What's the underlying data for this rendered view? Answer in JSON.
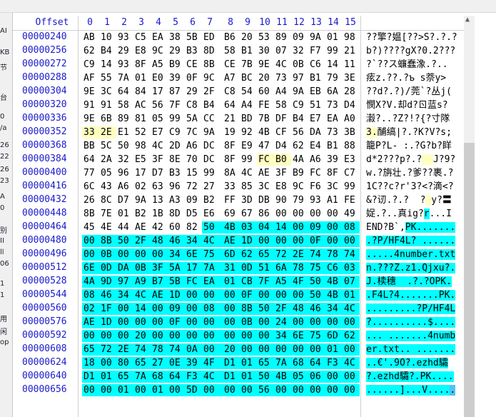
{
  "header": {
    "offset_label": "Offset",
    "columns": [
      "0",
      "1",
      "2",
      "3",
      "4",
      "5",
      "6",
      "7",
      "8",
      "9",
      "10",
      "11",
      "12",
      "13",
      "14",
      "15"
    ]
  },
  "sidebar_fragments": [
    "AI",
    "KB",
    "节",
    "台",
    "0",
    "/a",
    "26",
    "22",
    "26",
    "23",
    "A",
    "0",
    "别",
    "II",
    "ll",
    "06",
    "1",
    "1",
    "用",
    "闲",
    "op"
  ],
  "colors": {
    "offset": "#1a1acc",
    "selection": "#00ffff",
    "mark": "#ffffc0",
    "caret": "#4fc3f7"
  },
  "selection": {
    "start": 471,
    "end": 671
  },
  "marked_bytes": [
    352,
    353,
    394,
    395
  ],
  "rows": [
    {
      "offset": "00000240",
      "hex": [
        "AB",
        "10",
        "93",
        "C5",
        "EA",
        "38",
        "5B",
        "ED",
        "B6",
        "20",
        "53",
        "89",
        "09",
        "9A",
        "01",
        "98"
      ],
      "text": [
        [
          "??擎?媪[??>S?.?.?",
          ""
        ]
      ]
    },
    {
      "offset": "00000256",
      "hex": [
        "62",
        "B4",
        "29",
        "E8",
        "9C",
        "29",
        "B3",
        "8D",
        "58",
        "B1",
        "30",
        "07",
        "32",
        "F7",
        "99",
        "21"
      ],
      "text": [
        [
          "b?)????gX?0.2???",
          ""
        ]
      ]
    },
    {
      "offset": "00000272",
      "hex": [
        "C9",
        "14",
        "93",
        "8F",
        "A5",
        "B9",
        "CE",
        "8B",
        "CE",
        "7B",
        "9E",
        "4C",
        "0B",
        "C6",
        "14",
        "11"
      ],
      "text": [
        [
          "?`??ス蠊蠢潒.?..",
          ""
        ]
      ]
    },
    {
      "offset": "00000288",
      "hex": [
        "AF",
        "55",
        "7A",
        "01",
        "E0",
        "39",
        "0F",
        "9C",
        "A7",
        "BC",
        "20",
        "73",
        "97",
        "B1",
        "79",
        "3E"
      ],
      "text": [
        [
          "痃z.??.?ъ s萘y>",
          ""
        ]
      ]
    },
    {
      "offset": "00000304",
      "hex": [
        "9E",
        "3C",
        "64",
        "84",
        "17",
        "87",
        "29",
        "2F",
        "C8",
        "54",
        "60",
        "A4",
        "9A",
        "EB",
        "6A",
        "28"
      ],
      "text": [
        [
          "??d?.?)/莞`?丛j(",
          ""
        ]
      ]
    },
    {
      "offset": "00000320",
      "hex": [
        "91",
        "91",
        "58",
        "AC",
        "56",
        "7F",
        "C8",
        "B4",
        "64",
        "A4",
        "FE",
        "58",
        "C9",
        "51",
        "73",
        "D4"
      ],
      "text": [
        [
          "憫X?V.却d?ㄖ蓝s?",
          ""
        ]
      ]
    },
    {
      "offset": "00000336",
      "hex": [
        "9E",
        "6B",
        "89",
        "81",
        "05",
        "99",
        "5A",
        "CC",
        "21",
        "BD",
        "7B",
        "DF",
        "B4",
        "E7",
        "EA",
        "A0"
      ],
      "text": [
        [
          "瀫?..?Z?!?{?寸隊",
          ""
        ]
      ]
    },
    {
      "offset": "00000352",
      "hex": [
        "33",
        "2E",
        "E1",
        "52",
        "E7",
        "C9",
        "7C",
        "9A",
        "19",
        "92",
        "4B",
        "CF",
        "56",
        "DA",
        "73",
        "3B"
      ],
      "text": [
        [
          "3.",
          "mark"
        ],
        [
          "酺缟|?.?K?V?s;",
          ""
        ]
      ]
    },
    {
      "offset": "00000368",
      "hex": [
        "BB",
        "5C",
        "50",
        "98",
        "4C",
        "2D",
        "A6",
        "DC",
        "8F",
        "E9",
        "47",
        "D4",
        "62",
        "E4",
        "B1",
        "88"
      ],
      "text": [
        [
          "籠P?L- :.?G?b?眻",
          ""
        ]
      ]
    },
    {
      "offset": "00000384",
      "hex": [
        "64",
        "2A",
        "32",
        "E5",
        "3F",
        "8E",
        "70",
        "DC",
        "8F",
        "99",
        "FC",
        "B0",
        "4A",
        "A6",
        "39",
        "E3"
      ],
      "text": [
        [
          "d*2???p?.?",
          ""
        ],
        [
          "  ",
          "mark"
        ],
        [
          "J?9?",
          ""
        ]
      ]
    },
    {
      "offset": "00000400",
      "hex": [
        "77",
        "05",
        "96",
        "17",
        "D7",
        "B3",
        "15",
        "99",
        "8A",
        "4C",
        "AE",
        "3F",
        "B9",
        "FC",
        "8F",
        "C7"
      ],
      "text": [
        [
          "w.?旃壮.?爹??裹.?",
          ""
        ]
      ]
    },
    {
      "offset": "00000416",
      "hex": [
        "6C",
        "43",
        "A6",
        "02",
        "63",
        "96",
        "72",
        "27",
        "33",
        "85",
        "3C",
        "E8",
        "9C",
        "F6",
        "3C",
        "99"
      ],
      "text": [
        [
          "1C??c?r'3?<?滴<?",
          ""
        ]
      ]
    },
    {
      "offset": "00000432",
      "hex": [
        "26",
        "8C",
        "D7",
        "9A",
        "13",
        "A3",
        "09",
        "B2",
        "FF",
        "3D",
        "DB",
        "90",
        "79",
        "93",
        "A1",
        "FE"
      ],
      "text": [
        [
          "&?讱.?.?  ?",
          ""
        ],
        [
          " ",
          "mark"
        ],
        [
          "y?〓",
          ""
        ]
      ]
    },
    {
      "offset": "00000448",
      "hex": [
        "8B",
        "7E",
        "01",
        "B2",
        "1B",
        "8D",
        "D5",
        "E6",
        "69",
        "67",
        "86",
        "00",
        "00",
        "00",
        "00",
        "49"
      ],
      "text": [
        [
          "娖.?..真ig?",
          ""
        ],
        [
          "r",
          "sel"
        ],
        [
          "...I",
          ""
        ]
      ]
    },
    {
      "offset": "00000464",
      "hex": [
        "45",
        "4E",
        "44",
        "AE",
        "42",
        "60",
        "82",
        "50",
        "4B",
        "03",
        "04",
        "14",
        "00",
        "09",
        "00",
        "08"
      ],
      "text": [
        [
          "END?B`,",
          ""
        ],
        [
          "PK.......",
          "sel"
        ]
      ]
    },
    {
      "offset": "00000480",
      "hex": [
        "00",
        "8B",
        "50",
        "2F",
        "48",
        "46",
        "34",
        "4C",
        "AE",
        "1D",
        "00",
        "00",
        "00",
        "0F",
        "00",
        "00"
      ],
      "text": [
        [
          ".?P/HF4L? ......",
          "sel"
        ]
      ]
    },
    {
      "offset": "00000496",
      "hex": [
        "00",
        "0B",
        "00",
        "00",
        "00",
        "34",
        "6E",
        "75",
        "6D",
        "62",
        "65",
        "72",
        "2E",
        "74",
        "78",
        "74"
      ],
      "text": [
        [
          ".....4number.txt",
          "sel"
        ]
      ]
    },
    {
      "offset": "00000512",
      "hex": [
        "6E",
        "0D",
        "DA",
        "0B",
        "3F",
        "5A",
        "17",
        "7A",
        "31",
        "0D",
        "51",
        "6A",
        "78",
        "75",
        "C6",
        "03"
      ],
      "text": [
        [
          "n.???Z.z1.Qjxu?.",
          "sel"
        ]
      ]
    },
    {
      "offset": "00000528",
      "hex": [
        "4A",
        "9D",
        "97",
        "A9",
        "B7",
        "5B",
        "FC",
        "EA",
        "01",
        "CB",
        "7F",
        "A5",
        "4F",
        "50",
        "4B",
        "07"
      ],
      "text": [
        [
          "J.椟穗  .?.?OPK.",
          "sel"
        ]
      ]
    },
    {
      "offset": "00000544",
      "hex": [
        "08",
        "46",
        "34",
        "4C",
        "AE",
        "1D",
        "00",
        "00",
        "00",
        "0F",
        "00",
        "00",
        "00",
        "50",
        "4B",
        "01"
      ],
      "text": [
        [
          ".F4L?4.......PK.",
          "sel"
        ]
      ]
    },
    {
      "offset": "00000560",
      "hex": [
        "02",
        "1F",
        "00",
        "14",
        "00",
        "09",
        "00",
        "08",
        "00",
        "8B",
        "50",
        "2F",
        "48",
        "46",
        "34",
        "4C"
      ],
      "text": [
        [
          ".........?P/HF4L",
          "sel"
        ]
      ]
    },
    {
      "offset": "00000576",
      "hex": [
        "AE",
        "1D",
        "00",
        "00",
        "00",
        "0F",
        "00",
        "00",
        "00",
        "0B",
        "00",
        "24",
        "00",
        "00",
        "00",
        "00"
      ],
      "text": [
        [
          "?..........$....",
          "sel"
        ]
      ]
    },
    {
      "offset": "00000592",
      "hex": [
        "00",
        "00",
        "00",
        "20",
        "00",
        "00",
        "00",
        "00",
        "00",
        "00",
        "00",
        "34",
        "6E",
        "75",
        "6D",
        "62"
      ],
      "text": [
        [
          "... .......4numb",
          "sel"
        ]
      ]
    },
    {
      "offset": "00000608",
      "hex": [
        "65",
        "72",
        "2E",
        "74",
        "78",
        "74",
        "0A",
        "00",
        "20",
        "00",
        "00",
        "00",
        "00",
        "00",
        "01",
        "00"
      ],
      "text": [
        [
          "er.txt.. .......",
          "sel"
        ]
      ]
    },
    {
      "offset": "00000624",
      "hex": [
        "18",
        "00",
        "80",
        "65",
        "27",
        "0E",
        "39",
        "4F",
        "D1",
        "01",
        "65",
        "7A",
        "68",
        "64",
        "F3",
        "4C"
      ],
      "text": [
        [
          "..€'.9O?.ezhd驦",
          "sel"
        ]
      ]
    },
    {
      "offset": "00000640",
      "hex": [
        "D1",
        "01",
        "65",
        "7A",
        "68",
        "64",
        "F3",
        "4C",
        "D1",
        "01",
        "50",
        "4B",
        "05",
        "06",
        "00",
        "00"
      ],
      "text": [
        [
          "?.ezhd驦?.PK....",
          "sel"
        ]
      ]
    },
    {
      "offset": "00000656",
      "hex": [
        "00",
        "00",
        "01",
        "00",
        "01",
        "00",
        "5D",
        "00",
        "00",
        "00",
        "56",
        "00",
        "00",
        "00",
        "00",
        "00"
      ],
      "text": [
        [
          "......]...V....",
          "sel"
        ],
        [
          ".",
          "caret"
        ]
      ]
    }
  ]
}
